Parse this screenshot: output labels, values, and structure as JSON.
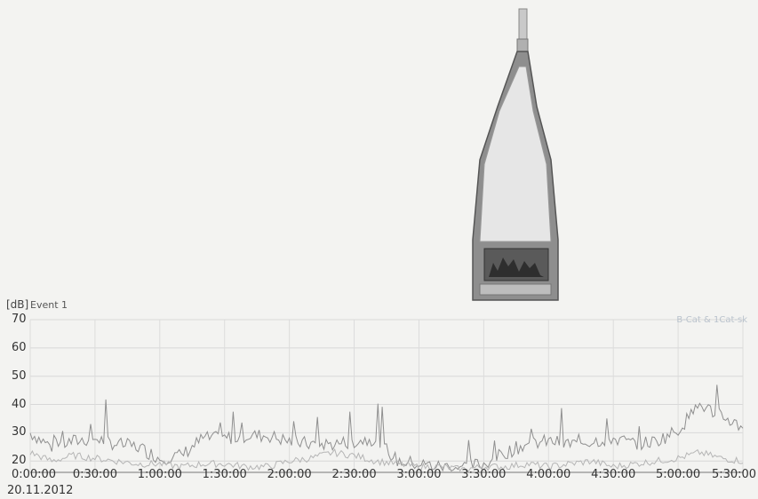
{
  "chart_data": {
    "type": "line",
    "title": "Event 1",
    "ylabel": "[dB]",
    "date": "20.11.2012",
    "legend": "B-Cat & 1Cat-sk",
    "ylim": [
      16,
      70
    ],
    "yticks": [
      20,
      30,
      40,
      50,
      60,
      70
    ],
    "xticks": [
      "0:00:00",
      "0:30:00",
      "1:00:00",
      "1:30:00",
      "2:00:00",
      "2:30:00",
      "3:00:00",
      "3:30:00",
      "4:00:00",
      "4:30:00",
      "5:00:00",
      "5:30:00"
    ],
    "grid": true,
    "series": [
      {
        "color": "#8f8f8f",
        "x_minutes": [
          0,
          10,
          20,
          30,
          40,
          50,
          60,
          70,
          80,
          90,
          100,
          110,
          120,
          130,
          140,
          150,
          160,
          170,
          180,
          190,
          200,
          210,
          220,
          230,
          240,
          250,
          260,
          270,
          280,
          290,
          300,
          310,
          320,
          330
        ],
        "values": [
          30,
          25,
          27,
          28,
          26,
          25,
          21,
          22,
          28,
          28,
          29,
          29,
          27,
          26,
          26,
          27,
          28,
          20,
          19,
          18,
          18,
          19,
          23,
          26,
          27,
          26,
          27,
          28,
          26,
          27,
          31,
          40,
          36,
          32
        ]
      },
      {
        "color": "#b5b5b5",
        "x_minutes": [
          0,
          10,
          20,
          30,
          40,
          50,
          60,
          70,
          80,
          90,
          100,
          110,
          120,
          130,
          140,
          150,
          160,
          170,
          180,
          190,
          200,
          210,
          220,
          230,
          240,
          250,
          260,
          270,
          280,
          290,
          300,
          310,
          320,
          330
        ],
        "values": [
          23,
          20,
          22,
          21,
          20,
          19,
          19,
          18,
          19,
          19,
          18,
          18,
          20,
          21,
          23,
          22,
          20,
          19,
          18,
          18,
          17,
          18,
          18,
          19,
          18,
          19,
          20,
          18,
          19,
          20,
          21,
          23,
          21,
          20
        ]
      }
    ]
  },
  "device": {
    "name": "sound-level-meter"
  }
}
